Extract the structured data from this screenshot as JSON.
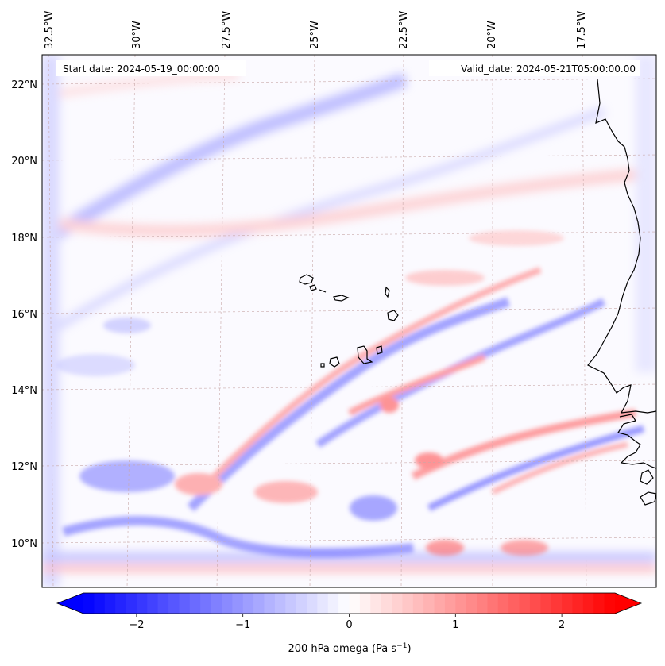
{
  "figure": {
    "start_label": "Start date: 2024-05-19_00:00:00",
    "valid_label": "Valid_date: 2024-05-21T05:00:00.00"
  },
  "lon_ticks": [
    "32.5°W",
    "30°W",
    "27.5°W",
    "25°W",
    "22.5°W",
    "20°W",
    "17.5°W"
  ],
  "lat_ticks": [
    "22°N",
    "20°N",
    "18°N",
    "16°N",
    "14°N",
    "12°N",
    "10°N"
  ],
  "colorbar": {
    "label_main": "200 hPa omega (Pa s",
    "label_exp": "−1",
    "label_close": ")",
    "tick_labels": [
      "−2",
      "−1",
      "0",
      "1",
      "2"
    ],
    "tick_values": [
      -2,
      -1,
      0,
      1,
      2
    ],
    "vmin": -2.5,
    "vmax": 2.5,
    "levels": 50,
    "cmap": "bwr"
  },
  "colors": {
    "negative": "#0000ff",
    "positive": "#ff0000",
    "neutral": "#ffffff",
    "coastline": "#000000",
    "grid": "#c8a8a8"
  }
}
